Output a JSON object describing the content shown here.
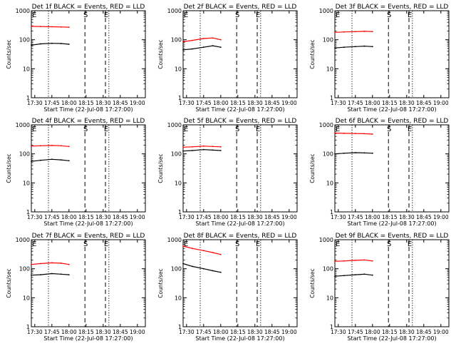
{
  "figure": {
    "background": "#ffffff",
    "axis_color": "#000000",
    "events_color": "#000000",
    "lld_color": "#ff0000",
    "marker_labels": {
      "start": "E",
      "mid": "S",
      "end": "E"
    }
  },
  "chart_data": [
    {
      "type": "line",
      "title": "Det 1f BLACK = Events, RED = LLD",
      "xlabel": "Start Time (22-Jul-08 17:27:00)",
      "ylabel": "Counts/sec",
      "xlim": [
        "17:27",
        "19:07"
      ],
      "ylim": [
        1,
        1000
      ],
      "yscale": "log",
      "xticks": [
        "17:30",
        "17:45",
        "18:00",
        "18:15",
        "18:30",
        "18:45",
        "19:00"
      ],
      "yticks": [
        "1",
        "10",
        "100",
        "1000"
      ],
      "vlines": [
        {
          "time": "17:42",
          "style": "dotted"
        },
        {
          "time": "18:14",
          "style": "dashed",
          "label": "S"
        },
        {
          "time": "18:32",
          "style": "dashed",
          "label": "E"
        },
        {
          "time": "18:35",
          "style": "dotted"
        }
      ],
      "series": [
        {
          "name": "LLD",
          "color": "#ff0000",
          "x": [
            "17:27",
            "17:35",
            "17:45",
            "17:53",
            "18:00"
          ],
          "values": [
            290,
            285,
            280,
            275,
            270
          ]
        },
        {
          "name": "Events",
          "color": "#000000",
          "x": [
            "17:27",
            "17:35",
            "17:45",
            "17:53",
            "18:00"
          ],
          "values": [
            65,
            72,
            75,
            74,
            70
          ]
        }
      ]
    },
    {
      "type": "line",
      "title": "Det 2f BLACK = Events, RED = LLD",
      "xlabel": "Start Time (22-Jul-08 17:27:00)",
      "ylabel": "Counts/sec",
      "xlim": [
        "17:27",
        "19:07"
      ],
      "ylim": [
        1,
        1000
      ],
      "yscale": "log",
      "xticks": [
        "17:30",
        "17:45",
        "18:00",
        "18:15",
        "18:30",
        "18:45",
        "19:00"
      ],
      "yticks": [
        "1",
        "10",
        "100",
        "1000"
      ],
      "vlines": [
        {
          "time": "17:42",
          "style": "dotted"
        },
        {
          "time": "18:14",
          "style": "dashed",
          "label": "S"
        },
        {
          "time": "18:32",
          "style": "dashed",
          "label": "E"
        },
        {
          "time": "18:35",
          "style": "dotted"
        }
      ],
      "series": [
        {
          "name": "LLD",
          "color": "#ff0000",
          "x": [
            "17:27",
            "17:35",
            "17:45",
            "17:53",
            "18:00"
          ],
          "values": [
            85,
            95,
            110,
            115,
            100
          ]
        },
        {
          "name": "Events",
          "color": "#000000",
          "x": [
            "17:27",
            "17:35",
            "17:45",
            "17:53",
            "18:00"
          ],
          "values": [
            45,
            48,
            55,
            62,
            55
          ]
        }
      ]
    },
    {
      "type": "line",
      "title": "Det 3f BLACK = Events, RED = LLD",
      "xlabel": "Start Time (22-Jul-08 17:27:00)",
      "ylabel": "Counts/sec",
      "xlim": [
        "17:27",
        "19:07"
      ],
      "ylim": [
        1,
        1000
      ],
      "yscale": "log",
      "xticks": [
        "17:30",
        "17:45",
        "18:00",
        "18:15",
        "18:30",
        "18:45",
        "19:00"
      ],
      "yticks": [
        "1",
        "10",
        "100",
        "1000"
      ],
      "vlines": [
        {
          "time": "17:42",
          "style": "dotted"
        },
        {
          "time": "18:14",
          "style": "dashed",
          "label": "S"
        },
        {
          "time": "18:32",
          "style": "dashed",
          "label": "E"
        },
        {
          "time": "18:35",
          "style": "dotted"
        }
      ],
      "series": [
        {
          "name": "LLD",
          "color": "#ff0000",
          "x": [
            "17:27",
            "17:35",
            "17:45",
            "17:53",
            "18:00"
          ],
          "values": [
            180,
            185,
            190,
            195,
            190
          ]
        },
        {
          "name": "Events",
          "color": "#000000",
          "x": [
            "17:27",
            "17:35",
            "17:45",
            "17:53",
            "18:00"
          ],
          "values": [
            52,
            55,
            58,
            60,
            58
          ]
        }
      ]
    },
    {
      "type": "line",
      "title": "Det 4f BLACK = Events, RED = LLD",
      "xlabel": "Start Time (22-Jul-08 17:27:00)",
      "ylabel": "Counts/sec",
      "xlim": [
        "17:27",
        "19:07"
      ],
      "ylim": [
        1,
        1000
      ],
      "yscale": "log",
      "xticks": [
        "17:30",
        "17:45",
        "18:00",
        "18:15",
        "18:30",
        "18:45",
        "19:00"
      ],
      "yticks": [
        "1",
        "10",
        "100",
        "1000"
      ],
      "vlines": [
        {
          "time": "17:42",
          "style": "dotted"
        },
        {
          "time": "18:14",
          "style": "dashed",
          "label": "S"
        },
        {
          "time": "18:32",
          "style": "dashed",
          "label": "E"
        },
        {
          "time": "18:35",
          "style": "dotted"
        }
      ],
      "series": [
        {
          "name": "LLD",
          "color": "#ff0000",
          "x": [
            "17:27",
            "17:35",
            "17:45",
            "17:53",
            "18:00"
          ],
          "values": [
            185,
            190,
            195,
            190,
            180
          ]
        },
        {
          "name": "Events",
          "color": "#000000",
          "x": [
            "17:27",
            "17:35",
            "17:45",
            "17:53",
            "18:00"
          ],
          "values": [
            55,
            60,
            65,
            62,
            58
          ]
        }
      ]
    },
    {
      "type": "line",
      "title": "Det 5f BLACK = Events, RED = LLD",
      "xlabel": "Start Time (22-Jul-08 17:27:00)",
      "ylabel": "Counts/sec",
      "xlim": [
        "17:27",
        "19:07"
      ],
      "ylim": [
        1,
        1000
      ],
      "yscale": "log",
      "xticks": [
        "17:30",
        "17:45",
        "18:00",
        "18:15",
        "18:30",
        "18:45",
        "19:00"
      ],
      "yticks": [
        "1",
        "10",
        "100",
        "1000"
      ],
      "vlines": [
        {
          "time": "17:42",
          "style": "dotted"
        },
        {
          "time": "18:14",
          "style": "dashed",
          "label": "S"
        },
        {
          "time": "18:32",
          "style": "dashed",
          "label": "E"
        },
        {
          "time": "18:35",
          "style": "dotted"
        }
      ],
      "series": [
        {
          "name": "LLD",
          "color": "#ff0000",
          "x": [
            "17:27",
            "17:35",
            "17:45",
            "17:53",
            "18:00"
          ],
          "values": [
            170,
            175,
            185,
            180,
            175
          ]
        },
        {
          "name": "Events",
          "color": "#000000",
          "x": [
            "17:27",
            "17:35",
            "17:45",
            "17:53",
            "18:00"
          ],
          "values": [
            125,
            130,
            140,
            135,
            130
          ]
        }
      ]
    },
    {
      "type": "line",
      "title": "Det 6f BLACK = Events, RED = LLD",
      "xlabel": "Start Time (22-Jul-08 17:27:00)",
      "ylabel": "Counts/sec",
      "xlim": [
        "17:27",
        "19:07"
      ],
      "ylim": [
        1,
        1000
      ],
      "yscale": "log",
      "xticks": [
        "17:30",
        "17:45",
        "18:00",
        "18:15",
        "18:30",
        "18:45",
        "19:00"
      ],
      "yticks": [
        "1",
        "10",
        "100",
        "1000"
      ],
      "vlines": [
        {
          "time": "17:42",
          "style": "dotted"
        },
        {
          "time": "18:14",
          "style": "dashed",
          "label": "S"
        },
        {
          "time": "18:32",
          "style": "dashed",
          "label": "E"
        },
        {
          "time": "18:35",
          "style": "dotted"
        }
      ],
      "series": [
        {
          "name": "LLD",
          "color": "#ff0000",
          "x": [
            "17:27",
            "17:35",
            "17:45",
            "17:53",
            "18:00"
          ],
          "values": [
            520,
            510,
            500,
            495,
            480
          ]
        },
        {
          "name": "Events",
          "color": "#000000",
          "x": [
            "17:27",
            "17:35",
            "17:45",
            "17:53",
            "18:00"
          ],
          "values": [
            100,
            105,
            110,
            108,
            105
          ]
        }
      ]
    },
    {
      "type": "line",
      "title": "Det 7f BLACK = Events, RED = LLD",
      "xlabel": "Start Time (22-Jul-08 17:27:00)",
      "ylabel": "Counts/sec",
      "xlim": [
        "17:27",
        "19:07"
      ],
      "ylim": [
        1,
        1000
      ],
      "yscale": "log",
      "xticks": [
        "17:30",
        "17:45",
        "18:00",
        "18:15",
        "18:30",
        "18:45",
        "19:00"
      ],
      "yticks": [
        "1",
        "10",
        "100",
        "1000"
      ],
      "vlines": [
        {
          "time": "17:42",
          "style": "dotted"
        },
        {
          "time": "18:14",
          "style": "dashed",
          "label": "S"
        },
        {
          "time": "18:32",
          "style": "dashed",
          "label": "E"
        },
        {
          "time": "18:35",
          "style": "dotted"
        }
      ],
      "series": [
        {
          "name": "LLD",
          "color": "#ff0000",
          "x": [
            "17:27",
            "17:35",
            "17:45",
            "17:53",
            "18:00"
          ],
          "values": [
            140,
            150,
            160,
            155,
            140
          ]
        },
        {
          "name": "Events",
          "color": "#000000",
          "x": [
            "17:27",
            "17:35",
            "17:45",
            "17:53",
            "18:00"
          ],
          "values": [
            60,
            62,
            68,
            65,
            62
          ]
        }
      ]
    },
    {
      "type": "line",
      "title": "Det 8f BLACK = Events, RED = LLD",
      "xlabel": "Start Time (22-Jul-08 17:27:00)",
      "ylabel": "Counts/sec",
      "xlim": [
        "17:27",
        "19:07"
      ],
      "ylim": [
        1,
        1000
      ],
      "yscale": "log",
      "xticks": [
        "17:30",
        "17:45",
        "18:00",
        "18:15",
        "18:30",
        "18:45",
        "19:00"
      ],
      "yticks": [
        "1",
        "10",
        "100",
        "1000"
      ],
      "vlines": [
        {
          "time": "17:42",
          "style": "dotted"
        },
        {
          "time": "18:14",
          "style": "dashed",
          "label": "S"
        },
        {
          "time": "18:32",
          "style": "dashed",
          "label": "E"
        },
        {
          "time": "18:35",
          "style": "dotted"
        }
      ],
      "series": [
        {
          "name": "LLD",
          "color": "#ff0000",
          "x": [
            "17:27",
            "17:35",
            "17:45",
            "17:53",
            "18:00"
          ],
          "values": [
            600,
            500,
            420,
            360,
            310
          ]
        },
        {
          "name": "Events",
          "color": "#000000",
          "x": [
            "17:27",
            "17:35",
            "17:45",
            "17:53",
            "18:00"
          ],
          "values": [
            150,
            120,
            100,
            85,
            75
          ]
        }
      ]
    },
    {
      "type": "line",
      "title": "Det 9f BLACK = Events, RED = LLD",
      "xlabel": "Start Time (22-Jul-08 17:27:00)",
      "ylabel": "Counts/sec",
      "xlim": [
        "17:27",
        "19:07"
      ],
      "ylim": [
        1,
        1000
      ],
      "yscale": "log",
      "xticks": [
        "17:30",
        "17:45",
        "18:00",
        "18:15",
        "18:30",
        "18:45",
        "19:00"
      ],
      "yticks": [
        "1",
        "10",
        "100",
        "1000"
      ],
      "vlines": [
        {
          "time": "17:42",
          "style": "dotted"
        },
        {
          "time": "18:14",
          "style": "dashed",
          "label": "S"
        },
        {
          "time": "18:32",
          "style": "dashed",
          "label": "E"
        },
        {
          "time": "18:35",
          "style": "dotted"
        }
      ],
      "series": [
        {
          "name": "LLD",
          "color": "#ff0000",
          "x": [
            "17:27",
            "17:35",
            "17:45",
            "17:53",
            "18:00"
          ],
          "values": [
            180,
            185,
            195,
            200,
            185
          ]
        },
        {
          "name": "Events",
          "color": "#000000",
          "x": [
            "17:27",
            "17:35",
            "17:45",
            "17:53",
            "18:00"
          ],
          "values": [
            55,
            58,
            62,
            65,
            60
          ]
        }
      ]
    }
  ]
}
